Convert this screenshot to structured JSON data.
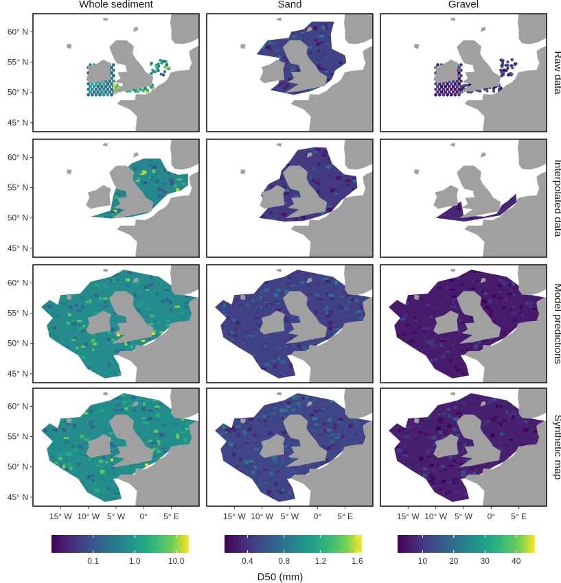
{
  "chart_data": {
    "type": "heatmap",
    "panel_columns": [
      "Whole sediment",
      "Sand",
      "Gravel"
    ],
    "panel_rows": [
      "Raw data",
      "Interpolated data",
      "Model predictions",
      "Synthetic map"
    ],
    "y_ticks": [
      "45° N",
      "50° N",
      "55° N",
      "60° N"
    ],
    "y_tick_values": [
      45,
      50,
      55,
      60
    ],
    "x_ticks": [
      "15° W",
      "10° W",
      "5° W",
      "0°",
      "5° E"
    ],
    "x_tick_values": [
      -15,
      -10,
      -5,
      0,
      5
    ],
    "lon_range": [
      -20,
      10
    ],
    "lat_range": [
      43.5,
      63
    ],
    "colorbar_title": "D50 (mm)",
    "colorbars": [
      {
        "panel_column": "Whole sediment",
        "scale": "log",
        "range": [
          0.01,
          20
        ],
        "ticks": [
          "0.1",
          "1.0",
          "10.0"
        ],
        "tick_values": [
          0.1,
          1.0,
          10.0
        ]
      },
      {
        "panel_column": "Sand",
        "scale": "linear",
        "range": [
          0.15,
          1.65
        ],
        "ticks": [
          "0.4",
          "0.8",
          "1.2",
          "1.6"
        ],
        "tick_values": [
          0.4,
          0.8,
          1.2,
          1.6
        ]
      },
      {
        "panel_column": "Gravel",
        "scale": "linear",
        "range": [
          2,
          46
        ],
        "ticks": [
          "10",
          "20",
          "30",
          "40"
        ],
        "tick_values": [
          10,
          20,
          30,
          40
        ]
      }
    ],
    "colormap": "viridis",
    "colors": {
      "land": "#a0a0a0",
      "panel_border": "#1a1a1a",
      "viridis_low": "#440154",
      "viridis_mid": "#21918c",
      "viridis_high": "#fde725"
    },
    "grid": false
  }
}
